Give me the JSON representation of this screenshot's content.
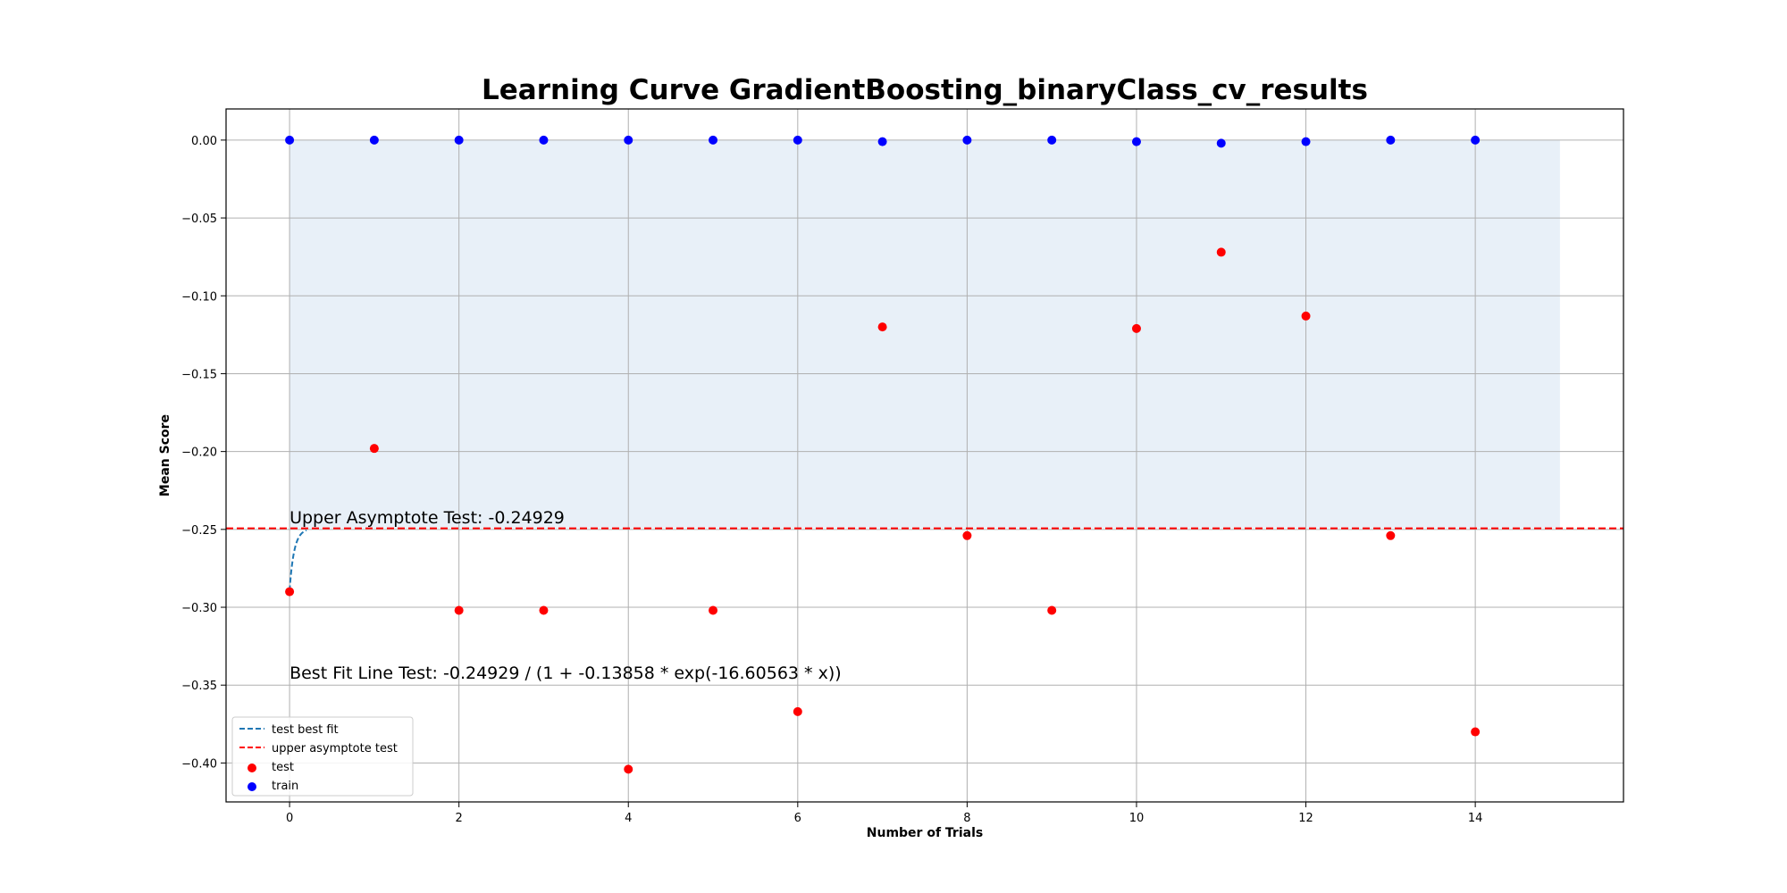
{
  "chart_data": {
    "type": "scatter",
    "title": "Learning Curve GradientBoosting_binaryClass_cv_results",
    "xlabel": "Number of Trials",
    "ylabel": "Mean Score",
    "xlim": [
      -0.75,
      15.75
    ],
    "ylim": [
      -0.425,
      0.02
    ],
    "xticks": [
      0,
      2,
      4,
      6,
      8,
      10,
      12,
      14
    ],
    "yticks": [
      0.0,
      -0.05,
      -0.1,
      -0.15,
      -0.2,
      -0.25,
      -0.3,
      -0.35,
      -0.4
    ],
    "x_tick_labels": [
      "0",
      "2",
      "4",
      "6",
      "8",
      "10",
      "12",
      "14"
    ],
    "y_tick_labels": [
      "0.00",
      "−0.05",
      "−0.10",
      "−0.15",
      "−0.20",
      "−0.25",
      "−0.30",
      "−0.35",
      "−0.40"
    ],
    "grid": true,
    "legend_position": "lower-left",
    "series": [
      {
        "name": "test",
        "kind": "scatter",
        "color": "#ff0000",
        "x": [
          0,
          1,
          2,
          3,
          4,
          5,
          6,
          7,
          8,
          9,
          10,
          11,
          12,
          13,
          14
        ],
        "y": [
          -0.29,
          -0.198,
          -0.302,
          -0.302,
          -0.404,
          -0.302,
          -0.367,
          -0.12,
          -0.254,
          -0.302,
          -0.121,
          -0.072,
          -0.113,
          -0.254,
          -0.38
        ]
      },
      {
        "name": "train",
        "kind": "scatter",
        "color": "#0000ff",
        "x": [
          0,
          1,
          2,
          3,
          4,
          5,
          6,
          7,
          8,
          9,
          10,
          11,
          12,
          13,
          14
        ],
        "y": [
          0.0,
          0.0,
          0.0,
          0.0,
          0.0,
          0.0,
          0.0,
          -0.001,
          0.0,
          0.0,
          -0.001,
          -0.002,
          -0.001,
          0.0,
          0.0
        ]
      },
      {
        "name": "test best fit",
        "kind": "line",
        "style": "dashed",
        "color": "#1f77b4",
        "formula": {
          "L": -0.24929,
          "a": -0.13858,
          "k": -16.60563
        },
        "x_range": [
          0,
          0.2
        ]
      },
      {
        "name": "upper asymptote test",
        "kind": "hline",
        "style": "dashed",
        "color": "#ff0000",
        "y": -0.24929
      }
    ],
    "band": {
      "color": "#dce8f5",
      "x_range": [
        0,
        15
      ],
      "y_range": [
        -0.24929,
        0.0
      ]
    },
    "annotations": [
      {
        "text": "Upper Asymptote Test: -0.24929",
        "x": 0,
        "y": -0.246
      },
      {
        "text": "Best Fit Line Test: -0.24929 / (1 + -0.13858 * exp(-16.60563 * x))",
        "x": 0,
        "y": -0.346
      }
    ],
    "legend": [
      {
        "label": "test best fit",
        "marker": "dashed-line",
        "color": "#1f77b4"
      },
      {
        "label": "upper asymptote test",
        "marker": "dashed-line",
        "color": "#ff0000"
      },
      {
        "label": "test",
        "marker": "dot",
        "color": "#ff0000"
      },
      {
        "label": "train",
        "marker": "dot",
        "color": "#0000ff"
      }
    ]
  }
}
